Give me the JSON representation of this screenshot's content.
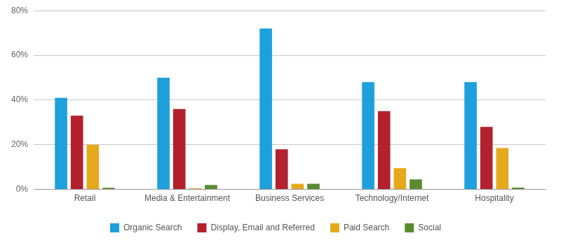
{
  "chart_data": {
    "type": "bar",
    "categories": [
      "Retail",
      "Media & Entertainment",
      "Business Services",
      "Technology/Internet",
      "Hospitality"
    ],
    "series": [
      {
        "name": "Organic Search",
        "color": "#1ea0dc",
        "values": [
          41,
          50,
          72,
          48,
          48
        ]
      },
      {
        "name": "Display, Email and Referred",
        "color": "#b3202e",
        "values": [
          33,
          36,
          18,
          35,
          28
        ]
      },
      {
        "name": "Paid Search",
        "color": "#e5a91c",
        "values": [
          20,
          0.5,
          2.5,
          9.5,
          18.5
        ]
      },
      {
        "name": "Social",
        "color": "#5b8a32",
        "values": [
          0.7,
          2,
          2.5,
          4.5,
          0.8
        ]
      }
    ],
    "ylim": [
      0,
      80
    ],
    "yticks": [
      {
        "value": 0,
        "label": "0%"
      },
      {
        "value": 20,
        "label": "20%"
      },
      {
        "value": 40,
        "label": "40%"
      },
      {
        "value": 60,
        "label": "60%"
      },
      {
        "value": 80,
        "label": "80%"
      }
    ],
    "grid": true,
    "legend": "bottom"
  }
}
